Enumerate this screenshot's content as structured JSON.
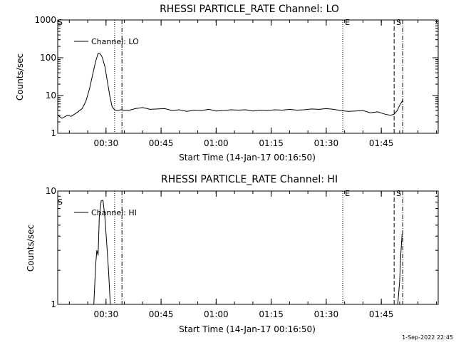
{
  "footer_stamp": "1-Sep-2022 22:45",
  "chart_data": [
    {
      "type": "line",
      "title": "RHESSI PARTICLE_RATE Channel: LO",
      "xlabel": "Start Time (14-Jan-17 00:16:50)",
      "ylabel": "Counts/sec",
      "y_scale": "log",
      "xlim": [
        "00:16:50",
        "02:00:30"
      ],
      "ylim": [
        1,
        1000
      ],
      "x_ticks": [
        "00:30",
        "00:45",
        "01:00",
        "01:15",
        "01:30",
        "01:45"
      ],
      "y_ticks": [
        "1",
        "10",
        "100",
        "1000"
      ],
      "legend": {
        "position": "top-left",
        "entries": [
          "Channel: LO"
        ]
      },
      "markers": [
        {
          "time": "00:32:20",
          "style": "dotted",
          "label": ""
        },
        {
          "time": "00:34:20",
          "style": "dashdot",
          "label": ""
        },
        {
          "time": "01:34:30",
          "style": "dotted",
          "label": "E"
        },
        {
          "time": "01:48:30",
          "style": "dashed",
          "label": "S"
        },
        {
          "time": "01:50:50",
          "style": "dashdot",
          "label": ""
        }
      ],
      "corner_label": "S",
      "series": [
        {
          "name": "Channel: LO",
          "x": [
            "00:16:50",
            "00:18:00",
            "00:19:30",
            "00:20:30",
            "00:22:00",
            "00:23:30",
            "00:24:30",
            "00:25:30",
            "00:26:20",
            "00:27:10",
            "00:27:50",
            "00:28:30",
            "00:29:00",
            "00:29:40",
            "00:30:20",
            "00:31:00",
            "00:31:40",
            "00:32:20",
            "00:33:00",
            "00:34:00",
            "00:36:00",
            "00:38:00",
            "00:40:00",
            "00:42:00",
            "00:44:00",
            "00:46:00",
            "00:48:00",
            "00:50:00",
            "00:52:00",
            "00:54:00",
            "00:56:00",
            "00:58:00",
            "01:00:00",
            "01:02:00",
            "01:04:00",
            "01:06:00",
            "01:08:00",
            "01:10:00",
            "01:12:00",
            "01:14:00",
            "01:16:00",
            "01:18:00",
            "01:20:00",
            "01:22:00",
            "01:24:00",
            "01:26:00",
            "01:28:00",
            "01:30:00",
            "01:32:00",
            "01:34:00",
            "01:36:00",
            "01:38:00",
            "01:40:00",
            "01:42:00",
            "01:44:00",
            "01:46:00",
            "01:47:30",
            "01:48:30",
            "01:49:20",
            "01:50:00",
            "01:50:50"
          ],
          "values": [
            3,
            2.5,
            3,
            2.8,
            3.5,
            4.5,
            7,
            15,
            35,
            80,
            130,
            125,
            100,
            60,
            25,
            10,
            5,
            4.2,
            4,
            4.2,
            4,
            4.5,
            4.8,
            4.3,
            4.4,
            4.5,
            4,
            4.2,
            3.8,
            4.1,
            4,
            4.3,
            3.9,
            4,
            4.2,
            4.1,
            4.2,
            3.9,
            4.1,
            4,
            4.2,
            4.1,
            4.3,
            4.1,
            4.2,
            4.4,
            4.3,
            4.5,
            4.3,
            4,
            3.8,
            3.9,
            4,
            3.5,
            3.7,
            3.2,
            3,
            3.2,
            4,
            5.5,
            7.5
          ]
        }
      ]
    },
    {
      "type": "line",
      "title": "RHESSI PARTICLE_RATE Channel: HI",
      "xlabel": "Start Time (14-Jan-17 00:16:50)",
      "ylabel": "Counts/sec",
      "y_scale": "log",
      "xlim": [
        "00:16:50",
        "02:00:30"
      ],
      "ylim": [
        1,
        10
      ],
      "x_ticks": [
        "00:30",
        "00:45",
        "01:00",
        "01:15",
        "01:30",
        "01:45"
      ],
      "y_ticks": [
        "1",
        "10"
      ],
      "legend": {
        "position": "top-left",
        "entries": [
          "Channel: HI"
        ]
      },
      "markers": [
        {
          "time": "00:32:20",
          "style": "dotted",
          "label": ""
        },
        {
          "time": "00:34:20",
          "style": "dashdot",
          "label": ""
        },
        {
          "time": "01:34:30",
          "style": "dotted",
          "label": "E"
        },
        {
          "time": "01:48:30",
          "style": "dashed",
          "label": "S"
        },
        {
          "time": "01:50:50",
          "style": "dashdot",
          "label": ""
        }
      ],
      "corner_label": "S",
      "series": [
        {
          "name": "Channel: HI",
          "x": [
            "00:26:40",
            "00:27:10",
            "00:27:30",
            "00:27:50",
            "00:28:10",
            "00:28:40",
            "00:29:10",
            "00:29:40",
            "00:30:10",
            "00:30:40",
            "00:31:10"
          ],
          "values": [
            1,
            2.2,
            3,
            2.7,
            6,
            8.2,
            8.3,
            6,
            3.5,
            2,
            1
          ],
          "x2": [
            "01:49:30",
            "01:50:00",
            "01:50:20",
            "01:50:40"
          ],
          "values2": [
            1,
            1.6,
            2.8,
            4.2
          ]
        }
      ]
    }
  ]
}
